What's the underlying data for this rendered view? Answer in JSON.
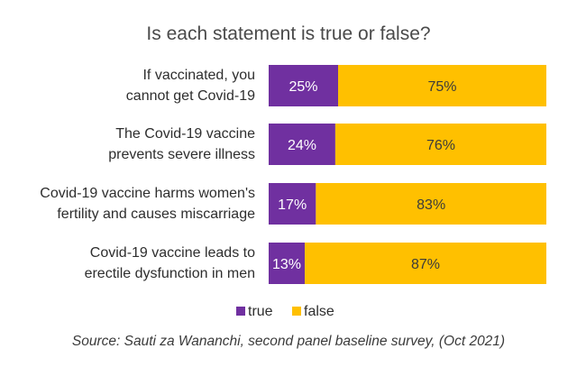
{
  "chart_data": {
    "type": "bar",
    "orientation": "horizontal",
    "stacked": true,
    "title": "Is each statement is true or false?",
    "categories": [
      [
        "If vaccinated, you",
        "cannot get Covid-19"
      ],
      [
        "The Covid-19 vaccine",
        "prevents severe illness"
      ],
      [
        "Covid-19 vaccine harms women's",
        "fertility and causes miscarriage"
      ],
      [
        "Covid-19 vaccine leads to",
        "erectile dysfunction in men"
      ]
    ],
    "series": [
      {
        "name": "true",
        "color": "#7030a0",
        "values": [
          25,
          24,
          17,
          13
        ],
        "labels": [
          "25%",
          "24%",
          "17%",
          "13%"
        ]
      },
      {
        "name": "false",
        "color": "#ffc000",
        "values": [
          75,
          76,
          83,
          87
        ],
        "labels": [
          "75%",
          "76%",
          "83%",
          "87%"
        ]
      }
    ],
    "xlim": [
      0,
      100
    ],
    "legend_position": "bottom",
    "grid": false
  },
  "source": "Source: Sauti za Wananchi, second panel baseline survey, (Oct 2021)"
}
